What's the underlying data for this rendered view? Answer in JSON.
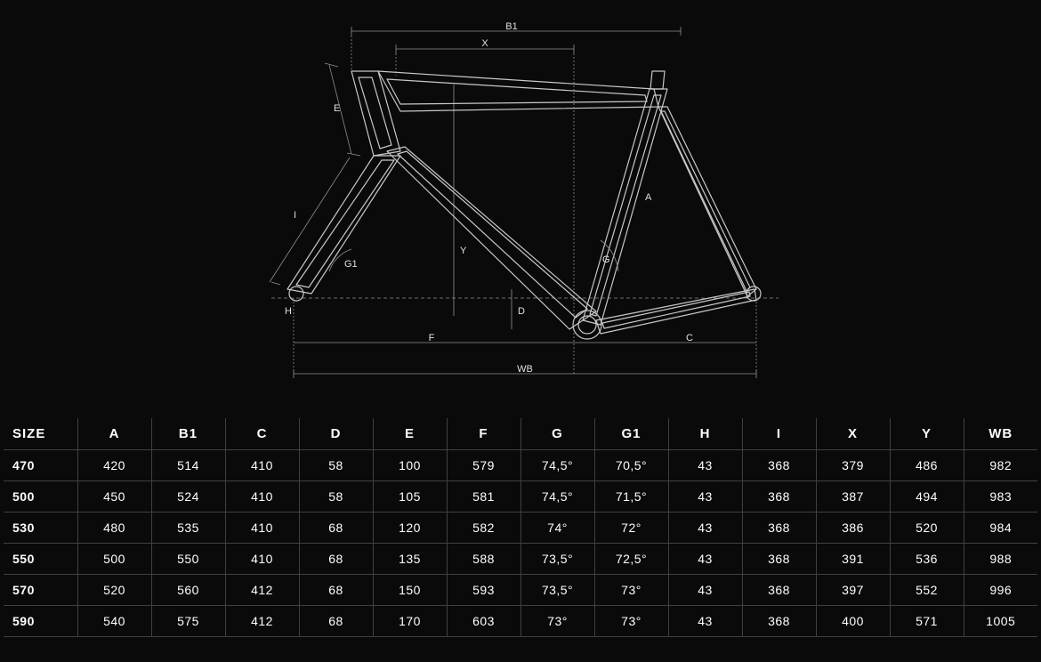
{
  "diagram": {
    "type": "technical-drawing",
    "subject": "bicycle-frame-geometry",
    "line_color": "#c8c8c8",
    "dim_line_color": "#909090",
    "label_color": "#e0e0e0",
    "background": "#0a0a0a",
    "labels": {
      "B1": "B1",
      "X": "X",
      "E": "E",
      "I": "I",
      "G1": "G1",
      "H": "H",
      "Y": "Y",
      "D": "D",
      "A": "A",
      "G": "G",
      "F": "F",
      "C": "C",
      "WB": "WB"
    }
  },
  "table": {
    "columns": [
      "SIZE",
      "A",
      "B1",
      "C",
      "D",
      "E",
      "F",
      "G",
      "G1",
      "H",
      "I",
      "X",
      "Y",
      "WB"
    ],
    "rows": [
      [
        "470",
        "420",
        "514",
        "410",
        "58",
        "100",
        "579",
        "74,5°",
        "70,5°",
        "43",
        "368",
        "379",
        "486",
        "982"
      ],
      [
        "500",
        "450",
        "524",
        "410",
        "58",
        "105",
        "581",
        "74,5°",
        "71,5°",
        "43",
        "368",
        "387",
        "494",
        "983"
      ],
      [
        "530",
        "480",
        "535",
        "410",
        "68",
        "120",
        "582",
        "74°",
        "72°",
        "43",
        "368",
        "386",
        "520",
        "984"
      ],
      [
        "550",
        "500",
        "550",
        "410",
        "68",
        "135",
        "588",
        "73,5°",
        "72,5°",
        "43",
        "368",
        "391",
        "536",
        "988"
      ],
      [
        "570",
        "520",
        "560",
        "412",
        "68",
        "150",
        "593",
        "73,5°",
        "73°",
        "43",
        "368",
        "397",
        "552",
        "996"
      ],
      [
        "590",
        "540",
        "575",
        "412",
        "68",
        "170",
        "603",
        "73°",
        "73°",
        "43",
        "368",
        "400",
        "571",
        "1005"
      ]
    ],
    "header_fontsize": 15,
    "cell_fontsize": 14,
    "border_color": "#404040",
    "text_color": "#ffffff"
  }
}
